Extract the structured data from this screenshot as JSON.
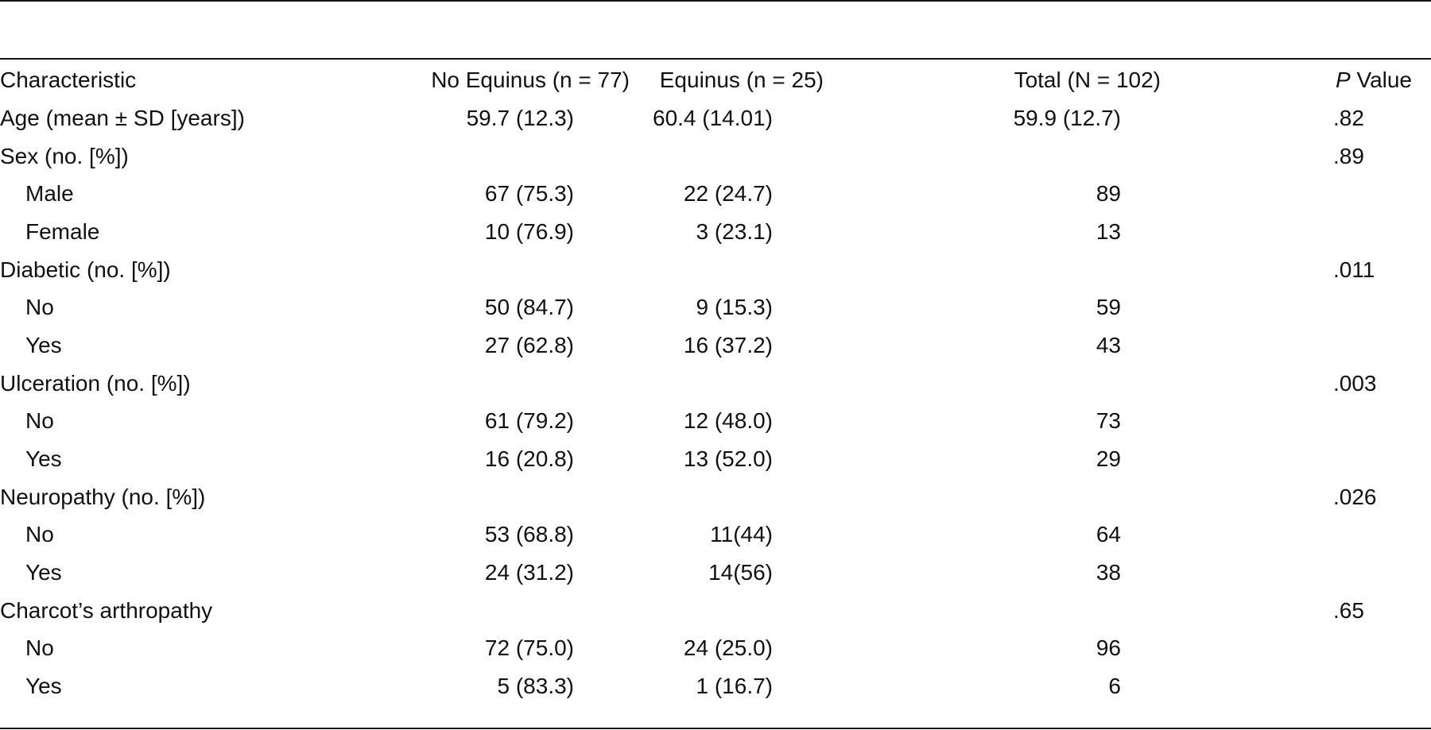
{
  "table": {
    "headers": {
      "characteristic": "Characteristic",
      "no_equinus": "No Equinus (n = 77)",
      "equinus": "Equinus (n = 25)",
      "total": "Total (N = 102)",
      "p_value_letter": "P",
      "p_value_rest": " Value"
    },
    "rows": [
      {
        "label": "Age (mean ± SD [years])",
        "no_equinus": "59.7 (12.3)",
        "equinus": "60.4 (14.01)",
        "total": "59.9 (12.7)",
        "p": ".82",
        "indent": false
      },
      {
        "label": "Sex (no. [%])",
        "no_equinus": "",
        "equinus": "",
        "total": "",
        "p": ".89",
        "indent": false
      },
      {
        "label": "Male",
        "no_equinus": "67 (75.3)",
        "equinus": "22 (24.7)",
        "total": "89",
        "p": "",
        "indent": true
      },
      {
        "label": "Female",
        "no_equinus": "10 (76.9)",
        "equinus": "3 (23.1)",
        "total": "13",
        "p": "",
        "indent": true
      },
      {
        "label": "Diabetic (no. [%])",
        "no_equinus": "",
        "equinus": "",
        "total": "",
        "p": ".011",
        "indent": false
      },
      {
        "label": "No",
        "no_equinus": "50 (84.7)",
        "equinus": "9 (15.3)",
        "total": "59",
        "p": "",
        "indent": true
      },
      {
        "label": "Yes",
        "no_equinus": "27 (62.8)",
        "equinus": "16 (37.2)",
        "total": "43",
        "p": "",
        "indent": true
      },
      {
        "label": "Ulceration (no. [%])",
        "no_equinus": "",
        "equinus": "",
        "total": "",
        "p": ".003",
        "indent": false
      },
      {
        "label": "No",
        "no_equinus": "61 (79.2)",
        "equinus": "12 (48.0)",
        "total": "73",
        "p": "",
        "indent": true
      },
      {
        "label": "Yes",
        "no_equinus": "16 (20.8)",
        "equinus": "13 (52.0)",
        "total": "29",
        "p": "",
        "indent": true
      },
      {
        "label": "Neuropathy (no. [%])",
        "no_equinus": "",
        "equinus": "",
        "total": "",
        "p": ".026",
        "indent": false
      },
      {
        "label": "No",
        "no_equinus": "53 (68.8)",
        "equinus": "11(44)",
        "total": "64",
        "p": "",
        "indent": true
      },
      {
        "label": "Yes",
        "no_equinus": "24 (31.2)",
        "equinus": "14(56)",
        "total": "38",
        "p": "",
        "indent": true
      },
      {
        "label": "Charcot’s arthropathy",
        "no_equinus": "",
        "equinus": "",
        "total": "",
        "p": ".65",
        "indent": false
      },
      {
        "label": "No",
        "no_equinus": "72 (75.0)",
        "equinus": "24 (25.0)",
        "total": "96",
        "p": "",
        "indent": true
      },
      {
        "label": "Yes",
        "no_equinus": "5 (83.3)",
        "equinus": "1 (16.7)",
        "total": "6",
        "p": "",
        "indent": true
      }
    ]
  }
}
